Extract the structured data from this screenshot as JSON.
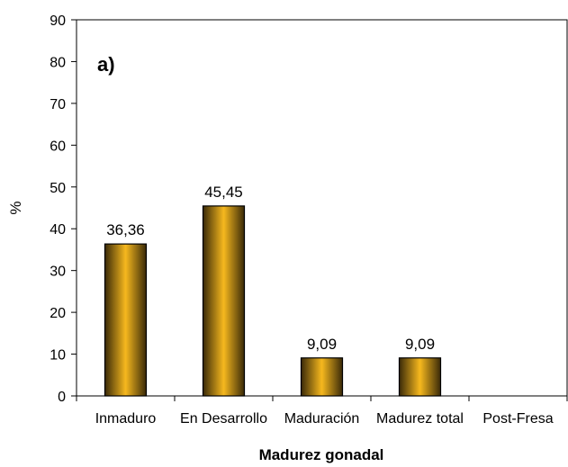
{
  "chart_data": {
    "type": "bar",
    "panel_label": "a)",
    "categories": [
      "Inmaduro",
      "En Desarrollo",
      "Maduración",
      "Madurez total",
      "Post-Fresa"
    ],
    "values": [
      36.36,
      45.45,
      9.09,
      9.09,
      0
    ],
    "data_labels": [
      "36,36",
      "45,45",
      "9,09",
      "9,09",
      ""
    ],
    "xlabel": "Madurez gonadal",
    "ylabel": "%",
    "ylim": [
      0,
      90
    ],
    "yticks": [
      0,
      10,
      20,
      30,
      40,
      50,
      60,
      70,
      80,
      90
    ],
    "grid": false,
    "bar_gradient": [
      "#3a2a08",
      "#f6b81e",
      "#3a2a08"
    ]
  }
}
